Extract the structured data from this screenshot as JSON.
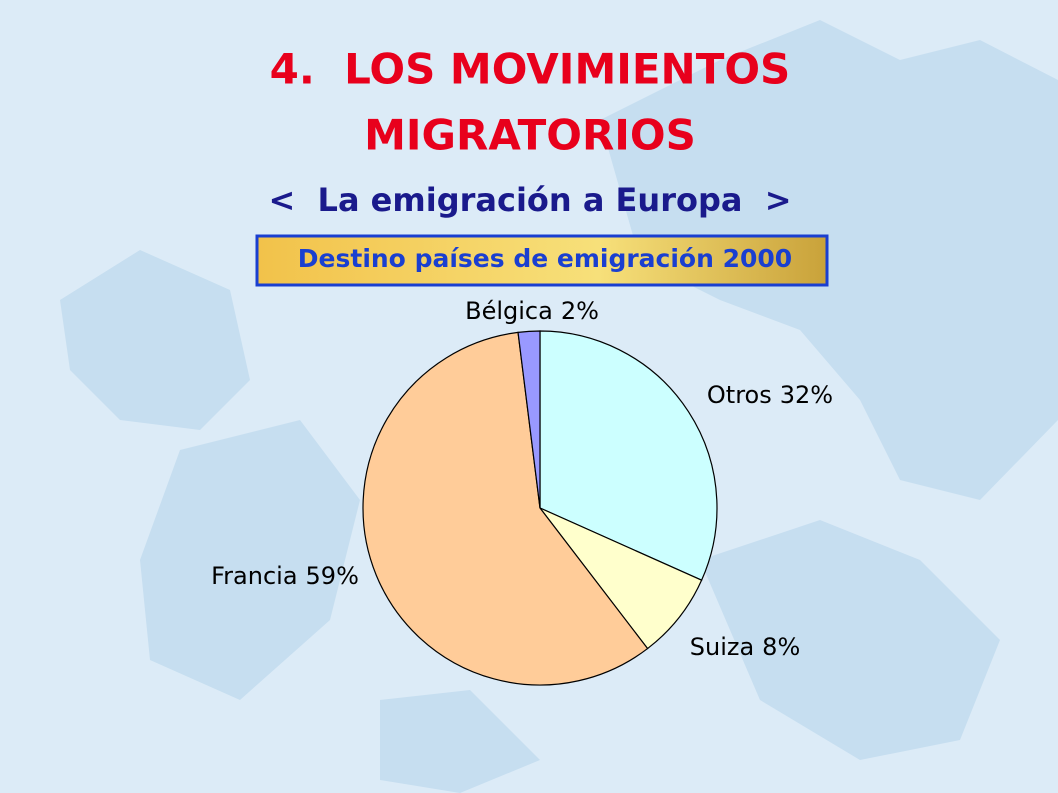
{
  "chart_data": {
    "type": "pie",
    "title": [
      "4.  LOS MOVIMIENTOS",
      "MIGRATORIOS"
    ],
    "subtitle": "<  La emigración a Europa  >",
    "chart_title": "Destino países de emigración 2000",
    "categories": [
      "Otros",
      "Suiza",
      "Francia",
      "Bélgica"
    ],
    "values": [
      32,
      8,
      59,
      2
    ],
    "value_labels": [
      "32%",
      "8%",
      "59%",
      "2%"
    ],
    "colors": [
      "#ccffff",
      "#ffffcc",
      "#ffcc99",
      "#9999ff"
    ]
  }
}
